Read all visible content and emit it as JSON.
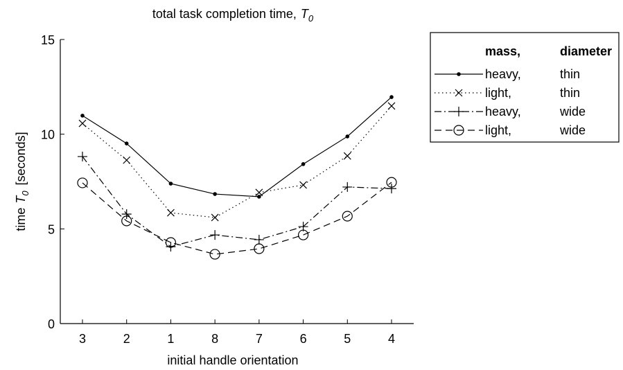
{
  "chart_data": {
    "type": "line",
    "title": {
      "text": "total task completion time,",
      "symbol": "T",
      "subscript": "0"
    },
    "x_label": "initial handle orientation",
    "y_label": {
      "text": "time",
      "symbol": "T",
      "subscript": "0",
      "unit": "[seconds]"
    },
    "categories": [
      "3",
      "2",
      "1",
      "8",
      "7",
      "6",
      "5",
      "4"
    ],
    "ylim": [
      0,
      15
    ],
    "yticks": [
      0,
      5,
      10,
      15
    ],
    "legend_header": [
      "mass,",
      "diameter"
    ],
    "legend": "outside-upper-right",
    "series": [
      {
        "mass": "heavy,",
        "diameter": "thin",
        "color": "#000000",
        "line": "solid",
        "marker": "dot",
        "values": [
          10.98,
          9.51,
          7.39,
          6.84,
          6.7,
          8.42,
          9.88,
          11.96
        ]
      },
      {
        "mass": "light,",
        "diameter": "thin",
        "color": "#000000",
        "line": "dotted",
        "marker": "x",
        "values": [
          10.57,
          8.63,
          5.85,
          5.6,
          6.92,
          7.32,
          8.85,
          11.49
        ]
      },
      {
        "mass": "heavy,",
        "diameter": "wide",
        "color": "#000000",
        "line": "dashdot",
        "marker": "plus",
        "values": [
          8.82,
          5.78,
          4.06,
          4.68,
          4.43,
          5.12,
          7.21,
          7.13
        ]
      },
      {
        "mass": "light,",
        "diameter": "wide",
        "color": "#000000",
        "line": "dashed",
        "marker": "circle",
        "values": [
          7.43,
          5.42,
          4.28,
          3.66,
          3.95,
          4.68,
          5.67,
          7.46
        ]
      }
    ]
  }
}
